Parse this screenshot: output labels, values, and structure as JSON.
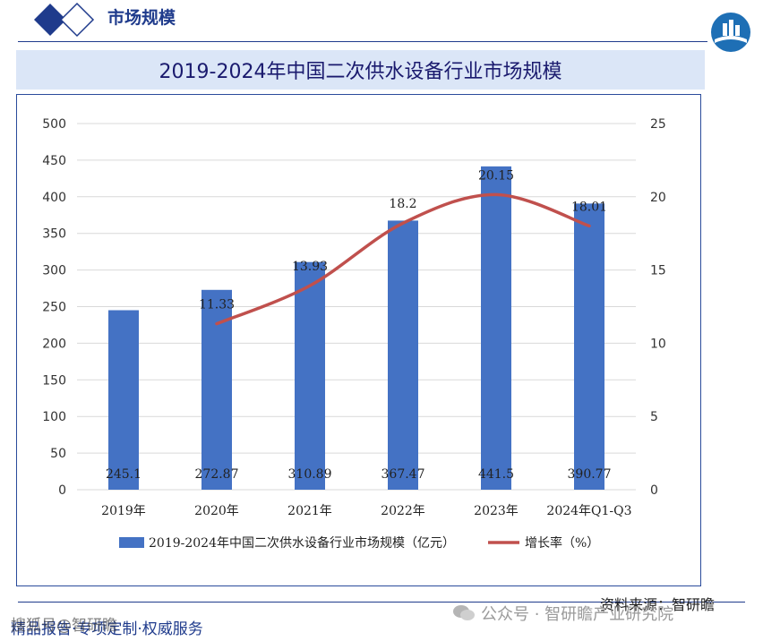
{
  "header": {
    "title": "市场规模"
  },
  "banner": {
    "title": "2019-2024年中国二次供水设备行业市场规模"
  },
  "footer": {
    "source": "资料来源：智研瞻",
    "slogan": "精品报告·专项定制·权威服务",
    "wechat": "公众号 · 智研瞻产业研究院",
    "watermark": "搜狐号@智研瞻"
  },
  "colors": {
    "bar": "#4472c4",
    "line": "#c0504d",
    "brand": "#1f3b8c",
    "banner_bg": "#dbe6f7"
  },
  "icons": {
    "logo": "building-logo-icon",
    "diamonds": "diamond-decoration-icon",
    "wechat": "wechat-icon"
  },
  "chart_data": {
    "type": "bar",
    "categories": [
      "2019年",
      "2020年",
      "2021年",
      "2022年",
      "2023年",
      "2024年Q1-Q3"
    ],
    "series": [
      {
        "name": "2019-2024年中国二次供水设备行业市场规模（亿元）",
        "type": "bar",
        "axis": "left",
        "values": [
          245.1,
          272.87,
          310.89,
          367.47,
          441.5,
          390.77
        ],
        "labels": [
          "245.1",
          "272.87",
          "310.89",
          "367.47",
          "441.5",
          "390.77"
        ]
      },
      {
        "name": "增长率（%）",
        "type": "line",
        "axis": "right",
        "values": [
          null,
          11.33,
          13.93,
          18.2,
          20.15,
          18.01
        ],
        "labels": [
          "",
          "11.33",
          "13.93",
          "18.2",
          "20.15",
          "18.01"
        ]
      }
    ],
    "y_left": {
      "min": 0,
      "max": 500,
      "ticks": [
        "0",
        "50",
        "100",
        "150",
        "200",
        "250",
        "300",
        "350",
        "400",
        "450",
        "500"
      ]
    },
    "y_right": {
      "min": 0,
      "max": 25,
      "ticks": [
        "0",
        "5",
        "10",
        "15",
        "20",
        "25"
      ]
    },
    "grid": true,
    "legend": "bottom"
  }
}
